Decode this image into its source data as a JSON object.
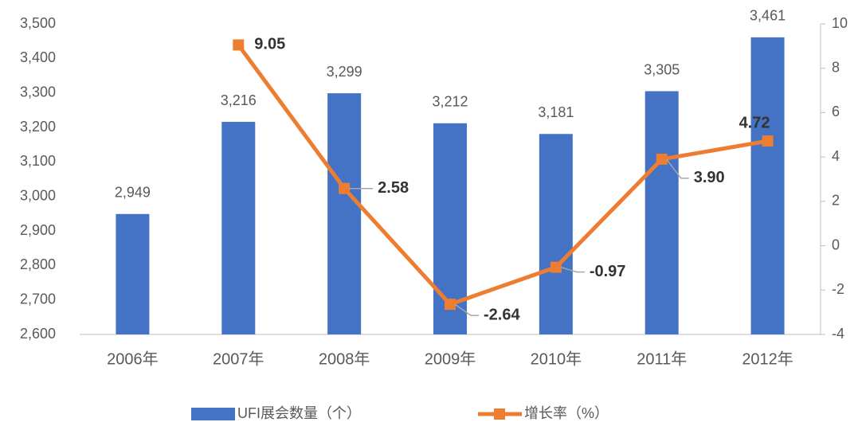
{
  "chart_data": {
    "type": "bar-line",
    "categories": [
      "2006年",
      "2007年",
      "2008年",
      "2009年",
      "2010年",
      "2011年",
      "2012年"
    ],
    "series": [
      {
        "name": "UFI展会数量（个）",
        "type": "bar",
        "color": "#4472c4",
        "values": [
          2949,
          3216,
          3299,
          3212,
          3181,
          3305,
          3461
        ],
        "value_labels": [
          "2,949",
          "3,216",
          "3,299",
          "3,212",
          "3,181",
          "3,305",
          "3,461"
        ]
      },
      {
        "name": "增长率（%）",
        "type": "line",
        "axis": "y2",
        "color": "#ed7d31",
        "values": [
          null,
          9.05,
          2.58,
          -2.64,
          -0.97,
          3.9,
          4.72
        ],
        "value_labels": [
          null,
          "9.05",
          "2.58",
          "-2.64",
          "-0.97",
          "3.90",
          "4.72"
        ]
      }
    ],
    "ylim": [
      2600,
      3500
    ],
    "yticks": [
      {
        "value": 2600,
        "label": "2,600"
      },
      {
        "value": 2700,
        "label": "2,700"
      },
      {
        "value": 2800,
        "label": "2,800"
      },
      {
        "value": 2900,
        "label": "2,900"
      },
      {
        "value": 3000,
        "label": "3,000"
      },
      {
        "value": 3100,
        "label": "3,100"
      },
      {
        "value": 3200,
        "label": "3,200"
      },
      {
        "value": 3300,
        "label": "3,300"
      },
      {
        "value": 3400,
        "label": "3,400"
      },
      {
        "value": 3500,
        "label": "3,500"
      }
    ],
    "y2lim": [
      -4,
      10
    ],
    "y2ticks": [
      -4,
      -2,
      0,
      2,
      4,
      6,
      8,
      10
    ],
    "grid": false,
    "legend": "bottom"
  }
}
